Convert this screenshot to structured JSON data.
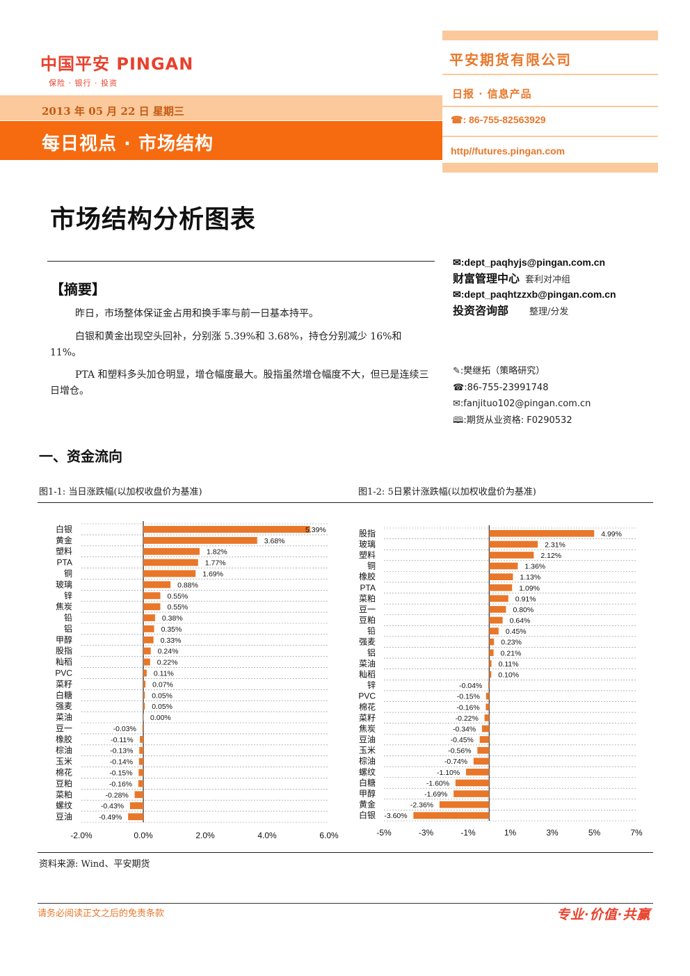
{
  "header": {
    "logo_main": "中国平安 PINGAN",
    "logo_sub": "保险 · 银行 · 投资",
    "date": "2013 年 05 月 22 日  星期三",
    "band_title": "每日视点 · 市场结构",
    "company": "平安期货有限公司",
    "daily": "日报 · 信息产品",
    "phone": "☎: 86-755-82563929",
    "url": "http//futures.pingan.com"
  },
  "title": "市场结构分析图表",
  "abstract": {
    "heading": "【摘要】",
    "p1": "昨日，市场整体保证金占用和换手率与前一日基本持平。",
    "p2": "白银和黄金出现空头回补，分别涨 5.39%和 3.68%，持仓分别减少 16%和 11%。",
    "p3": "PTA 和塑料多头加仓明显，增仓幅度最大。股指虽然增仓幅度不大，但已是连续三日增仓。"
  },
  "contact": {
    "email1": "✉:dept_paqhyjs@pingan.com.cn",
    "dept1_name": "财富管理中心",
    "dept1_group": "套利对冲组",
    "email2": "✉:dept_paqhtzzxb@pingan.com.cn",
    "dept2_name": "投资咨询部",
    "dept2_role": "整理/分发"
  },
  "analyst": {
    "name": "✎:樊继拓（策略研究）",
    "phone": "☎:86-755-23991748",
    "email": "✉:fanjituo102@pingan.com.cn",
    "license": "🕮:期货从业资格: F0290532"
  },
  "section1": "一、资金流向",
  "fig1_caption": "图1-1: 当日涨跌幅(以加权收盘价为基准)",
  "fig2_caption": "图1-2: 5日累计涨跌幅(以加权收盘价为基准)",
  "source": "资料来源: Wind、平安期货",
  "footer": {
    "disclaimer": "请务必阅读正文之后的免责条款",
    "slogan": "专业·价值·共赢"
  },
  "colors": {
    "bar": "#e8772a",
    "orange_band": "#f66a10",
    "light_band": "#fbc99b"
  },
  "chart_data": [
    {
      "type": "bar",
      "orientation": "horizontal",
      "title": "图1-1: 当日涨跌幅(以加权收盘价为基准)",
      "categories": [
        "白银",
        "黄金",
        "塑料",
        "PTA",
        "铜",
        "玻璃",
        "锌",
        "焦炭",
        "铅",
        "铝",
        "甲醇",
        "股指",
        "籼稻",
        "PVC",
        "菜籽",
        "白糖",
        "强麦",
        "菜油",
        "豆一",
        "橡胶",
        "棕油",
        "玉米",
        "棉花",
        "豆粕",
        "菜粕",
        "螺纹",
        "豆油"
      ],
      "values": [
        5.39,
        3.68,
        1.82,
        1.77,
        1.69,
        0.88,
        0.55,
        0.55,
        0.38,
        0.35,
        0.33,
        0.24,
        0.22,
        0.11,
        0.07,
        0.05,
        0.05,
        0.0,
        -0.03,
        -0.11,
        -0.13,
        -0.14,
        -0.15,
        -0.16,
        -0.28,
        -0.43,
        -0.49
      ],
      "labels": [
        "5.39%",
        "3.68%",
        "1.82%",
        "1.77%",
        "1.69%",
        "0.88%",
        "0.55%",
        "0.55%",
        "0.38%",
        "0.35%",
        "0.33%",
        "0.24%",
        "0.22%",
        "0.11%",
        "0.07%",
        "0.05%",
        "0.05%",
        "0.00%",
        "-0.03%",
        "-0.11%",
        "-0.13%",
        "-0.14%",
        "-0.15%",
        "-0.16%",
        "-0.28%",
        "-0.43%",
        "-0.49%"
      ],
      "xlim": [
        -2,
        6
      ],
      "xticks": [
        -2,
        0,
        2,
        4,
        6
      ],
      "xtick_labels": [
        "-2.0%",
        "0.0%",
        "2.0%",
        "4.0%",
        "6.0%"
      ],
      "grid": true
    },
    {
      "type": "bar",
      "orientation": "horizontal",
      "title": "图1-2: 5日累计涨跌幅(以加权收盘价为基准)",
      "categories": [
        "股指",
        "玻璃",
        "塑料",
        "铜",
        "橡胶",
        "PTA",
        "菜粕",
        "豆一",
        "豆粕",
        "铅",
        "强麦",
        "铝",
        "菜油",
        "籼稻",
        "锌",
        "PVC",
        "棉花",
        "菜籽",
        "焦炭",
        "豆油",
        "玉米",
        "棕油",
        "螺纹",
        "白糖",
        "甲醇",
        "黄金",
        "白银"
      ],
      "values": [
        4.99,
        2.31,
        2.12,
        1.36,
        1.13,
        1.09,
        0.91,
        0.8,
        0.64,
        0.45,
        0.23,
        0.21,
        0.11,
        0.1,
        -0.04,
        -0.15,
        -0.16,
        -0.22,
        -0.34,
        -0.45,
        -0.56,
        -0.74,
        -1.1,
        -1.6,
        -1.69,
        -2.36,
        -3.6
      ],
      "labels": [
        "4.99%",
        "2.31%",
        "2.12%",
        "1.36%",
        "1.13%",
        "1.09%",
        "0.91%",
        "0.80%",
        "0.64%",
        "0.45%",
        "0.23%",
        "0.21%",
        "0.11%",
        "0.10%",
        "-0.04%",
        "-0.15%",
        "-0.16%",
        "-0.22%",
        "-0.34%",
        "-0.45%",
        "-0.56%",
        "-0.74%",
        "-1.10%",
        "-1.60%",
        "-1.69%",
        "-2.36%",
        "-3.60%"
      ],
      "xlim": [
        -5,
        7
      ],
      "xticks": [
        -5,
        -3,
        -1,
        1,
        3,
        5,
        7
      ],
      "xtick_labels": [
        "-5%",
        "-3%",
        "-1%",
        "1%",
        "3%",
        "5%",
        "7%"
      ],
      "grid": true
    }
  ]
}
